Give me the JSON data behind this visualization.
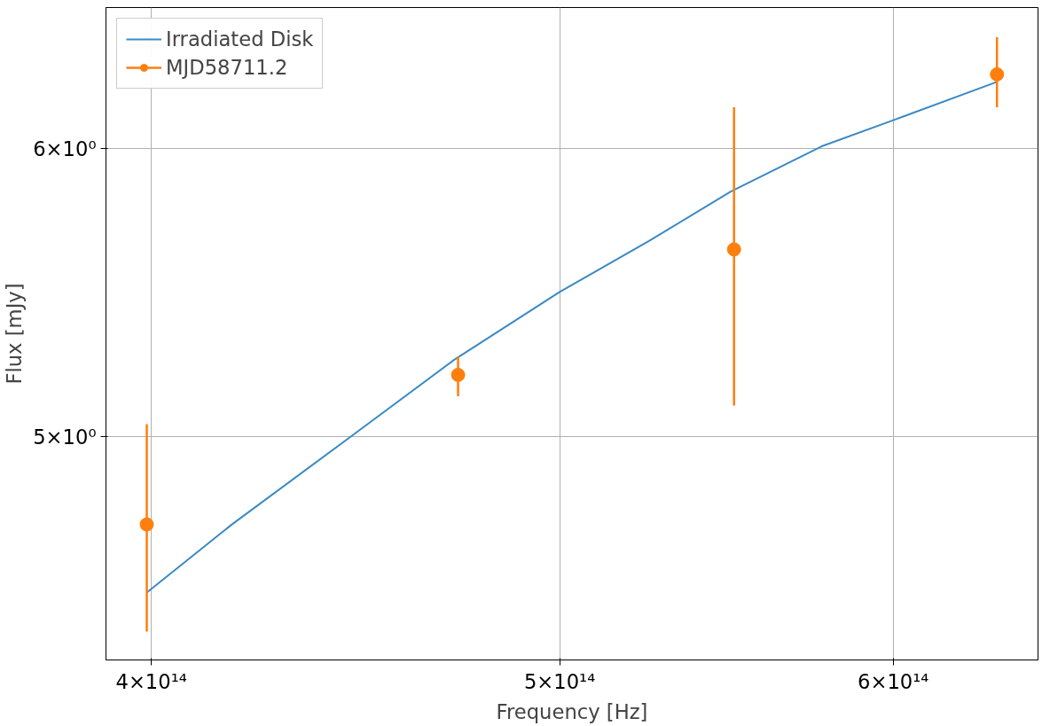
{
  "chart_data": {
    "type": "scatter",
    "xlabel": "Frequency [Hz]",
    "ylabel": "Flux [mJy]",
    "log": "xy",
    "grid": true,
    "legend": "top left",
    "xlim": [
      390200000000000.0,
      649400000000000.0
    ],
    "ylim": [
      4.341,
      6.562
    ],
    "xticks": [
      {
        "value": 400000000000000.0,
        "label": "4×10¹⁴"
      },
      {
        "value": 500000000000000.0,
        "label": "5×10¹⁴"
      },
      {
        "value": 600000000000000.0,
        "label": "6×10¹⁴"
      }
    ],
    "yticks": [
      {
        "value": 5,
        "label": "5×10⁰"
      },
      {
        "value": 6,
        "label": "6×10⁰"
      }
    ],
    "series": [
      {
        "name": "Irradiated Disk",
        "type": "line",
        "color": "#3a8ac4",
        "line_style": "solid",
        "marker": "none",
        "x": [
          399000000000000.0,
          418000000000000.0,
          446000000000000.0,
          472000000000000.0,
          500000000000000.0,
          525000000000000.0,
          549000000000000.0,
          577000000000000.0,
          600000000000000.0,
          635000000000000.0
        ],
        "values": [
          4.53,
          4.73,
          5.0,
          5.25,
          5.48,
          5.66,
          5.84,
          6.01,
          6.11,
          6.26
        ]
      },
      {
        "name": "MJD58711.2",
        "color": "#ff7f0e",
        "marker": "circle",
        "x": [
          399000000000000.0,
          473000000000000.0,
          550000000000000.0,
          635000000000000.0
        ],
        "values": [
          4.73,
          5.2,
          5.63,
          6.29
        ],
        "errors": [
          [
            4.42,
            5.04
          ],
          [
            5.13,
            5.26
          ],
          [
            5.1,
            6.16
          ],
          [
            6.16,
            6.44
          ]
        ]
      }
    ]
  }
}
